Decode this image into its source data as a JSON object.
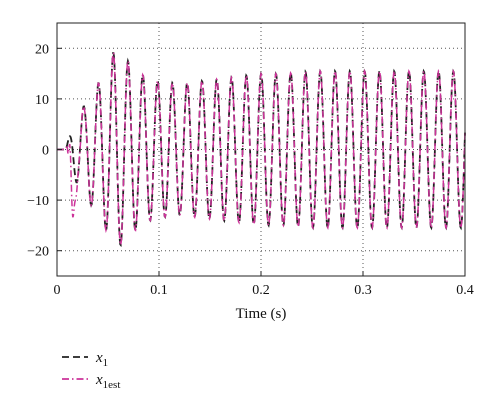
{
  "chart_data": {
    "type": "line",
    "title": "",
    "xlabel": "Time (s)",
    "ylabel": "",
    "xlim": [
      0,
      0.4
    ],
    "ylim": [
      -25,
      25
    ],
    "xticks": [
      0,
      0.1,
      0.2,
      0.3,
      0.4
    ],
    "xtick_labels": [
      "0",
      "0.1",
      "0.2",
      "0.3",
      "0.4"
    ],
    "yticks": [
      -20,
      -10,
      0,
      10,
      20
    ],
    "ytick_labels": [
      "−20",
      "−10",
      "0",
      "10",
      "20"
    ],
    "grid": true,
    "legend_position": "bottom-left",
    "signal": {
      "period": 0.0145,
      "x_sample_step": 0.0005
    },
    "envelope_knots": {
      "t": [
        0,
        0.008,
        0.012,
        0.016,
        0.02,
        0.028,
        0.036,
        0.044,
        0.05,
        0.056,
        0.062,
        0.072,
        0.082,
        0.092,
        0.1,
        0.12,
        0.14,
        0.16,
        0.18,
        0.2,
        0.22,
        0.25,
        0.3,
        0.35,
        0.4
      ],
      "amp": [
        0,
        0,
        2.5,
        5,
        7,
        9,
        12,
        14,
        17,
        19.5,
        19,
        17,
        15,
        14,
        13.5,
        13,
        13.5,
        14,
        14.5,
        15,
        15,
        15.5,
        15.5,
        15.5,
        15.5
      ]
    },
    "series": [
      {
        "name": "x",
        "subscript": "1",
        "color": "#222222",
        "dash": "dashed"
      },
      {
        "name": "x",
        "subscript": "1est",
        "color": "#cc3399",
        "dash": "dashdot"
      }
    ]
  }
}
